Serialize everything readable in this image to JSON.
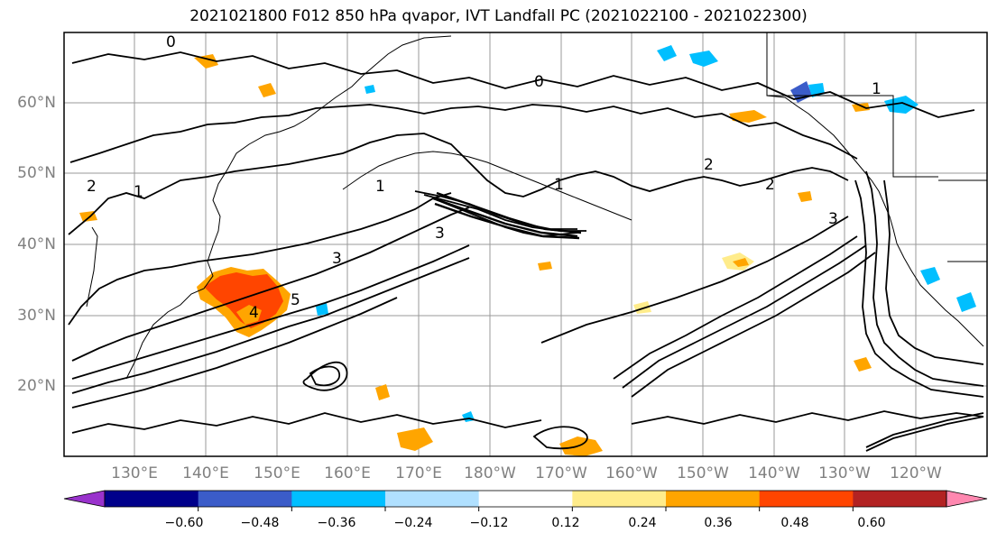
{
  "title": "2021021800 F012 850 hPa qvapor, IVT Landfall PC (2021022100 - 2021022300)",
  "lat_ticks": [
    "60°N",
    "50°N",
    "40°N",
    "30°N",
    "20°N"
  ],
  "lon_ticks": [
    "130°E",
    "140°E",
    "150°E",
    "160°E",
    "170°E",
    "180°W",
    "170°W",
    "160°W",
    "150°W",
    "140°W",
    "130°W",
    "120°W"
  ],
  "colorbar": {
    "colors": [
      "#9932CC",
      "#00008B",
      "#3B5CC9",
      "#00BFFF",
      "#B0E0FF",
      "#FFFFFF",
      "#FFEC8B",
      "#FFA500",
      "#FF4500",
      "#B22222",
      "#FF88B0"
    ],
    "tick_labels": [
      "−0.60",
      "−0.48",
      "−0.36",
      "−0.24",
      "−0.12",
      "0.12",
      "0.24",
      "0.36",
      "0.48",
      "0.60"
    ]
  },
  "contour_labels": [
    "0",
    "0",
    "1",
    "1",
    "1",
    "2",
    "2",
    "3",
    "3",
    "4",
    "5",
    "1",
    "2",
    "3"
  ],
  "colors": {
    "grid": "#9a9a9a",
    "contour": "#000000",
    "tick_label": "#808080"
  }
}
